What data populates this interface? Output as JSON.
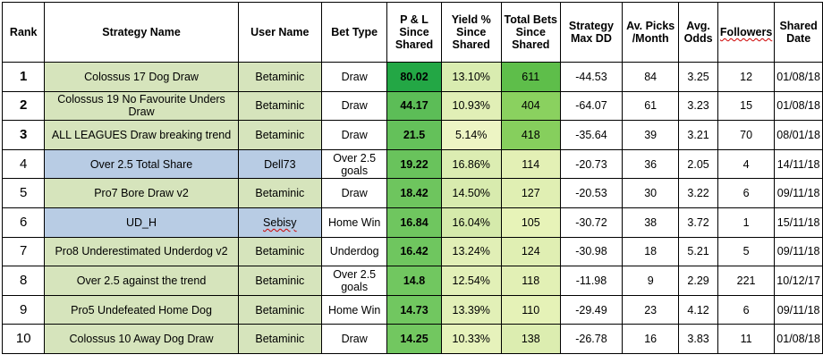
{
  "headers": {
    "rank": "Rank",
    "strategy": "Strategy Name",
    "user": "User Name",
    "bet_type": "Bet Type",
    "pl": "P & L Since Shared",
    "yield": "Yield % Since Shared",
    "total_bets": "Total Bets Since Shared",
    "max_dd": "Strategy Max DD",
    "picks": "Av. Picks /Month",
    "odds": "Avg. Odds",
    "followers": "Followers",
    "shared_date": "Shared Date"
  },
  "colors": {
    "name_green": "#d6e4bc",
    "name_blue": "#b8cce4",
    "pl_scale": [
      "#23a745",
      "#5cbd57",
      "#64c15a",
      "#69c35c",
      "#6ec55e",
      "#6fc65f",
      "#6fc65f",
      "#71c760",
      "#71c760",
      "#72c760"
    ],
    "yield_scale": [
      "#d9ecb0",
      "#e1efb6",
      "#edf5c4",
      "#dcedb2",
      "#d8ebae",
      "#d5eaab",
      "#e1efb6",
      "#e2f0b7",
      "#e2f0b7",
      "#e6f2bb"
    ],
    "bets_scale": [
      "#5ebe4a",
      "#8ad15f",
      "#86cf5d",
      "#e3f0b5",
      "#e0efb3",
      "#e7f3b8",
      "#e0efb3",
      "#e2f0b5",
      "#e5f2b7",
      "#dcedb0"
    ]
  },
  "rows": [
    {
      "rank": "1",
      "strategy": "Colossus 17 Dog Draw",
      "user": "Betaminic",
      "bet_type": "Draw",
      "pl": "80.02",
      "yield": "13.10%",
      "total_bets": "611",
      "max_dd": "-44.53",
      "picks": "84",
      "odds": "3.25",
      "followers": "12",
      "shared_date": "01/08/18",
      "name_color": "green",
      "rank_bold": true,
      "user_squiggle": false
    },
    {
      "rank": "2",
      "strategy": "Colossus 19 No Favourite Unders Draw",
      "user": "Betaminic",
      "bet_type": "Draw",
      "pl": "44.17",
      "yield": "10.93%",
      "total_bets": "404",
      "max_dd": "-64.07",
      "picks": "61",
      "odds": "3.23",
      "followers": "15",
      "shared_date": "01/08/18",
      "name_color": "green",
      "rank_bold": true,
      "user_squiggle": false
    },
    {
      "rank": "3",
      "strategy": "ALL LEAGUES Draw breaking trend",
      "user": "Betaminic",
      "bet_type": "Draw",
      "pl": "21.5",
      "yield": "5.14%",
      "total_bets": "418",
      "max_dd": "-35.64",
      "picks": "39",
      "odds": "3.21",
      "followers": "70",
      "shared_date": "08/01/18",
      "name_color": "green",
      "rank_bold": true,
      "user_squiggle": false
    },
    {
      "rank": "4",
      "strategy": "Over 2.5 Total Share",
      "user": "Dell73",
      "bet_type": "Over 2.5 goals",
      "pl": "19.22",
      "yield": "16.86%",
      "total_bets": "114",
      "max_dd": "-20.73",
      "picks": "36",
      "odds": "2.05",
      "followers": "4",
      "shared_date": "14/11/18",
      "name_color": "blue",
      "rank_bold": false,
      "user_squiggle": false
    },
    {
      "rank": "5",
      "strategy": "Pro7 Bore Draw v2",
      "user": "Betaminic",
      "bet_type": "Draw",
      "pl": "18.42",
      "yield": "14.50%",
      "total_bets": "127",
      "max_dd": "-20.53",
      "picks": "30",
      "odds": "3.22",
      "followers": "6",
      "shared_date": "09/11/18",
      "name_color": "green",
      "rank_bold": false,
      "user_squiggle": false
    },
    {
      "rank": "6",
      "strategy": "UD_H",
      "user": "Sebisy",
      "bet_type": "Home Win",
      "pl": "16.84",
      "yield": "16.04%",
      "total_bets": "105",
      "max_dd": "-30.72",
      "picks": "38",
      "odds": "3.72",
      "followers": "1",
      "shared_date": "15/11/18",
      "name_color": "blue",
      "rank_bold": false,
      "user_squiggle": true
    },
    {
      "rank": "7",
      "strategy": "Pro8 Underestimated Underdog v2",
      "user": "Betaminic",
      "bet_type": "Underdog",
      "pl": "16.42",
      "yield": "13.24%",
      "total_bets": "124",
      "max_dd": "-30.98",
      "picks": "18",
      "odds": "5.21",
      "followers": "5",
      "shared_date": "09/11/18",
      "name_color": "green",
      "rank_bold": false,
      "user_squiggle": false
    },
    {
      "rank": "8",
      "strategy": "Over 2.5 against the trend",
      "user": "Betaminic",
      "bet_type": "Over 2.5 goals",
      "pl": "14.8",
      "yield": "12.54%",
      "total_bets": "118",
      "max_dd": "-11.98",
      "picks": "9",
      "odds": "2.29",
      "followers": "221",
      "shared_date": "10/12/17",
      "name_color": "green",
      "rank_bold": false,
      "user_squiggle": false
    },
    {
      "rank": "9",
      "strategy": "Pro5 Undefeated Home Dog",
      "user": "Betaminic",
      "bet_type": "Home Win",
      "pl": "14.73",
      "yield": "13.39%",
      "total_bets": "110",
      "max_dd": "-29.49",
      "picks": "23",
      "odds": "4.12",
      "followers": "6",
      "shared_date": "09/11/18",
      "name_color": "green",
      "rank_bold": false,
      "user_squiggle": false
    },
    {
      "rank": "10",
      "strategy": "Colossus 10 Away Dog Draw",
      "user": "Betaminic",
      "bet_type": "Draw",
      "pl": "14.25",
      "yield": "10.33%",
      "total_bets": "138",
      "max_dd": "-26.78",
      "picks": "16",
      "odds": "3.83",
      "followers": "11",
      "shared_date": "01/08/18",
      "name_color": "green",
      "rank_bold": false,
      "user_squiggle": false
    }
  ]
}
